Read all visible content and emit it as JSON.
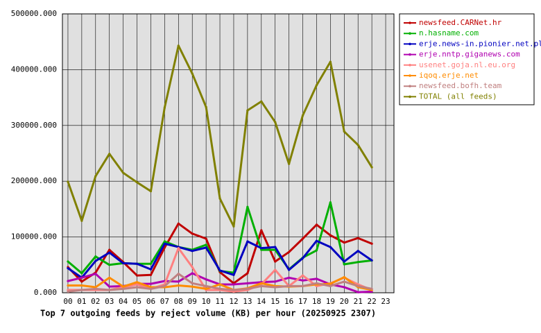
{
  "chart_data": {
    "type": "line",
    "title": "Top 7 outgoing feeds by reject volume (KB) per hour (20250925 2307)",
    "categories": [
      "00",
      "01",
      "02",
      "03",
      "04",
      "05",
      "06",
      "07",
      "08",
      "09",
      "10",
      "11",
      "12",
      "13",
      "14",
      "15",
      "16",
      "17",
      "18",
      "19",
      "20",
      "21",
      "22",
      "23"
    ],
    "ylim": [
      0,
      500000
    ],
    "yticks": [
      {
        "value": 0,
        "label": "0.000"
      },
      {
        "value": 100000,
        "label": "100000.000"
      },
      {
        "value": 200000,
        "label": "200000.000"
      },
      {
        "value": 300000,
        "label": "300000.000"
      },
      {
        "value": 400000,
        "label": "400000.000"
      },
      {
        "value": 500000,
        "label": "500000.000"
      }
    ],
    "grid": true,
    "legend": "right",
    "series": [
      {
        "name": "newsfeed.CARNet.hr",
        "color": "#c00000",
        "values": [
          46000,
          20000,
          36000,
          77000,
          55000,
          31000,
          32000,
          81000,
          124000,
          106000,
          97000,
          37000,
          17000,
          35000,
          112000,
          56000,
          73000,
          97000,
          122000,
          103000,
          90000,
          98000,
          88000,
          null
        ]
      },
      {
        "name": "n.hasname.com",
        "color": "#00b000",
        "values": [
          56000,
          35000,
          65000,
          50000,
          53000,
          52000,
          52000,
          92000,
          82000,
          77000,
          86000,
          39000,
          36000,
          154000,
          77000,
          77000,
          42000,
          63000,
          76000,
          162000,
          51000,
          55000,
          58000,
          null
        ]
      },
      {
        "name": "erje.news-in.pionier.net.pl",
        "color": "#0000c0",
        "values": [
          44000,
          27000,
          57000,
          72000,
          53000,
          52000,
          42000,
          88000,
          82000,
          75000,
          81000,
          40000,
          32000,
          92000,
          80000,
          82000,
          41000,
          62000,
          93000,
          82000,
          56000,
          75000,
          58000,
          null
        ]
      },
      {
        "name": "erje.nntp.giganews.com",
        "color": "#b000b0",
        "values": [
          21000,
          27000,
          34000,
          11000,
          12000,
          16000,
          16000,
          21000,
          20000,
          35000,
          24000,
          15000,
          15000,
          17000,
          19000,
          20000,
          27000,
          22000,
          25000,
          15000,
          10000,
          1000,
          2000,
          null
        ]
      },
      {
        "name": "usenet.goja.nl.eu.org",
        "color": "#ff8080",
        "values": [
          5000,
          5000,
          5000,
          5000,
          10000,
          15000,
          7000,
          15000,
          80000,
          46000,
          5000,
          5000,
          2000,
          5000,
          15000,
          41000,
          12000,
          31000,
          12000,
          17000,
          27000,
          15000,
          5000,
          null
        ]
      },
      {
        "name": "iqoq.erje.net",
        "color": "#ff8c00",
        "values": [
          13000,
          13000,
          10000,
          27000,
          11000,
          19000,
          10000,
          10000,
          13000,
          11000,
          7000,
          15000,
          5000,
          8000,
          17000,
          12000,
          11000,
          12000,
          15000,
          16000,
          28000,
          10000,
          5000,
          null
        ]
      },
      {
        "name": "newsfeed.bofh.team",
        "color": "#c08080",
        "values": [
          2000,
          5000,
          7000,
          5000,
          7000,
          10000,
          7000,
          12000,
          34000,
          17000,
          12000,
          7000,
          5000,
          7000,
          12000,
          10000,
          12000,
          12000,
          17000,
          12000,
          20000,
          12000,
          7000,
          null
        ]
      },
      {
        "name": "TOTAL (all feeds)",
        "color": "#808000",
        "values": [
          199000,
          129000,
          209000,
          249000,
          215000,
          198000,
          182000,
          332000,
          443000,
          393000,
          333000,
          169000,
          119000,
          327000,
          343000,
          306000,
          231000,
          318000,
          372000,
          414000,
          289000,
          265000,
          225000,
          null
        ]
      }
    ]
  }
}
